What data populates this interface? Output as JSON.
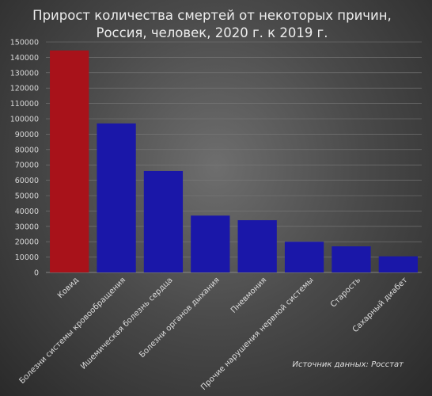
{
  "chart_data": {
    "type": "bar",
    "title_lines": [
      "Прирост количества смертей от некоторых причин,",
      "Россия, человек, 2020 г. к 2019 г."
    ],
    "categories": [
      "Ковид",
      "Болезни системы кровообращения",
      "Ишемическая болезнь сердца",
      "Болезни органов дыхания",
      "Пневмония",
      "Прочие нарушения нервной системы",
      "Старость",
      "Сахарный диабет"
    ],
    "values": [
      144500,
      97000,
      66000,
      37000,
      34000,
      20000,
      17000,
      10500
    ],
    "bar_colors": [
      "#a8121a",
      "#1a17a8",
      "#1a17a8",
      "#1a17a8",
      "#1a17a8",
      "#1a17a8",
      "#1a17a8",
      "#1a17a8"
    ],
    "ylim": [
      0,
      150000
    ],
    "yticks": [
      0,
      10000,
      20000,
      30000,
      40000,
      50000,
      60000,
      70000,
      80000,
      90000,
      100000,
      110000,
      120000,
      130000,
      140000,
      150000
    ],
    "grid": true,
    "source": "Источник данных: Росстат"
  }
}
